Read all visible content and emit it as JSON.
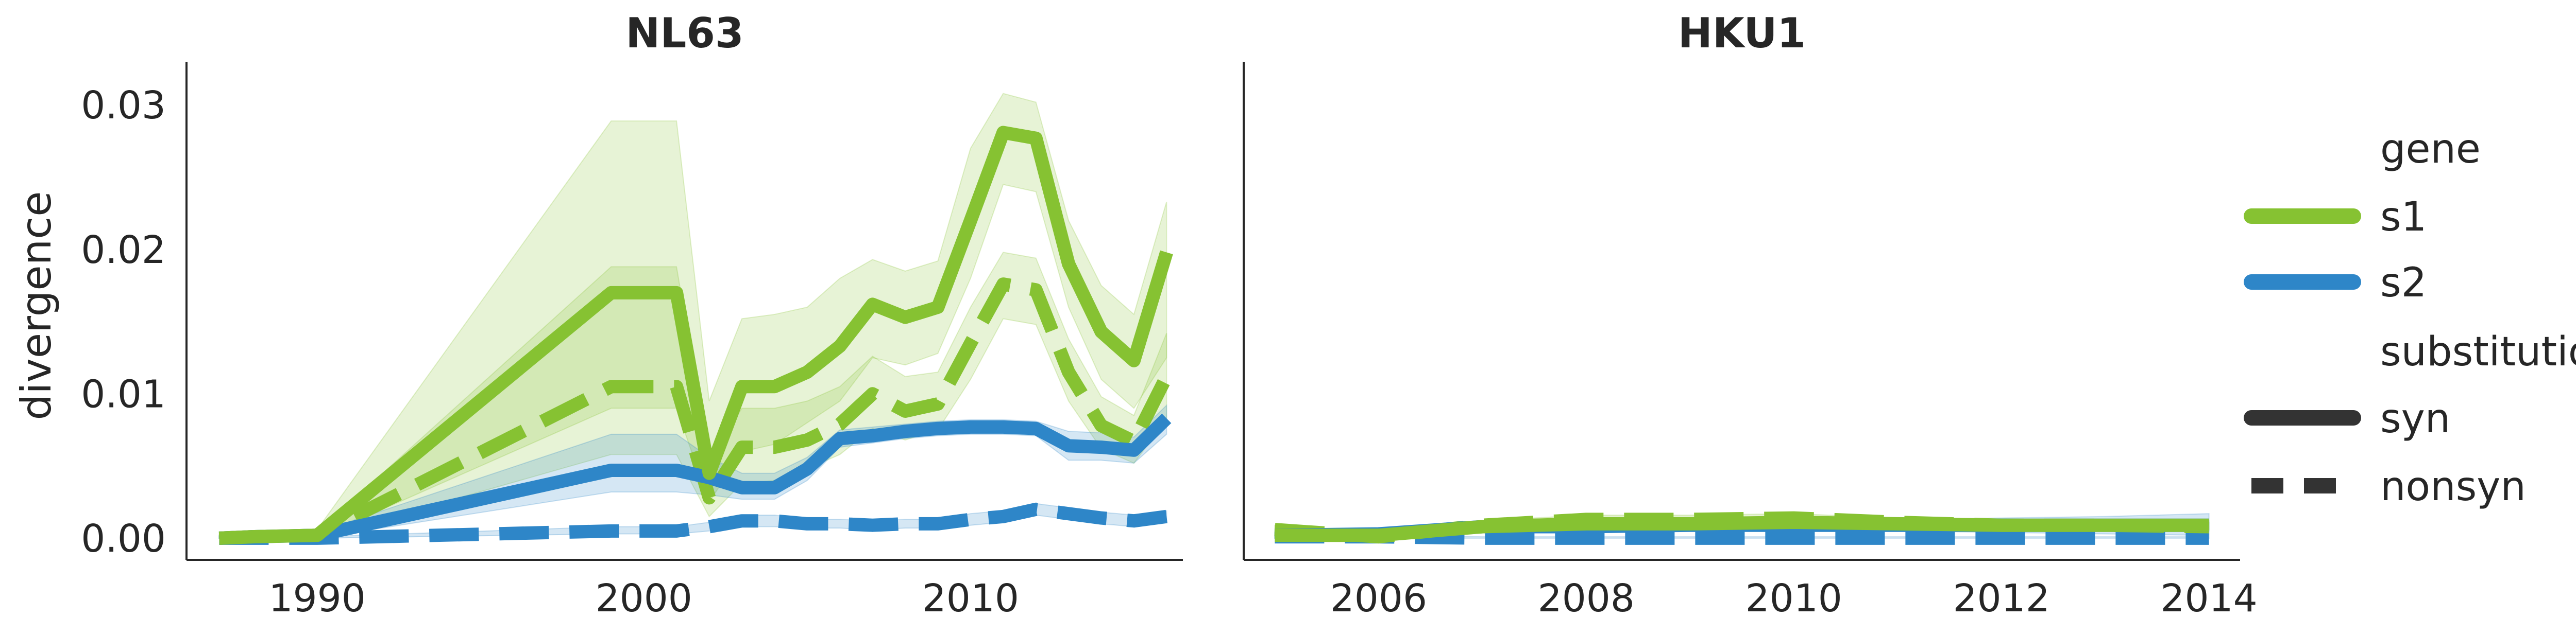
{
  "chart_data": [
    {
      "type": "line",
      "title": "NL63",
      "xlabel": "",
      "ylabel": "divergence",
      "xlim": [
        1986,
        2016.5
      ],
      "ylim": [
        -0.0015,
        0.033
      ],
      "xticks": [
        1990,
        2000,
        2010
      ],
      "yticks": [
        0.0,
        0.01,
        0.02,
        0.03
      ],
      "ytick_labels": [
        "0.00",
        "0.01",
        "0.02",
        "0.03"
      ],
      "grid": false,
      "series": [
        {
          "name": "s1 syn",
          "gene": "s1",
          "substitution": "syn",
          "x": [
            1987,
            1988,
            1990,
            1999,
            2001,
            2002,
            2003,
            2004,
            2005,
            2006,
            2007,
            2008,
            2009,
            2010,
            2011,
            2012,
            2013,
            2014,
            2015,
            2016
          ],
          "y": [
            0.0,
            0.0001,
            0.0002,
            0.017,
            0.017,
            0.0045,
            0.0105,
            0.0105,
            0.0115,
            0.0133,
            0.0162,
            0.0153,
            0.016,
            0.022,
            0.0281,
            0.0277,
            0.019,
            0.0143,
            0.0123,
            0.0198
          ],
          "ci_low": [
            0.0,
            0.0,
            0.0,
            0.009,
            0.009,
            0.0025,
            0.006,
            0.0065,
            0.008,
            0.0095,
            0.0125,
            0.012,
            0.0128,
            0.018,
            0.0245,
            0.024,
            0.016,
            0.011,
            0.009,
            0.0125
          ],
          "ci_high": [
            0.0003,
            0.0004,
            0.0006,
            0.0289,
            0.0289,
            0.0095,
            0.0152,
            0.0155,
            0.016,
            0.018,
            0.0193,
            0.0185,
            0.0192,
            0.027,
            0.0308,
            0.0302,
            0.022,
            0.0175,
            0.0155,
            0.0233
          ]
        },
        {
          "name": "s1 nonsyn",
          "gene": "s1",
          "substitution": "nonsyn",
          "x": [
            1987,
            1988,
            1990,
            1999,
            2001,
            2002,
            2003,
            2004,
            2005,
            2006,
            2007,
            2008,
            2009,
            2010,
            2011,
            2012,
            2013,
            2014,
            2015,
            2016
          ],
          "y": [
            0.0,
            0.0001,
            0.0002,
            0.0105,
            0.0105,
            0.0028,
            0.0063,
            0.0063,
            0.0068,
            0.0079,
            0.01,
            0.0088,
            0.0093,
            0.0135,
            0.0176,
            0.0172,
            0.0115,
            0.0078,
            0.0067,
            0.0112
          ],
          "ci_low": [
            0.0,
            0.0,
            0.0,
            0.0058,
            0.0058,
            0.0015,
            0.0038,
            0.004,
            0.0048,
            0.0058,
            0.0076,
            0.0068,
            0.0075,
            0.011,
            0.0152,
            0.0148,
            0.0095,
            0.0062,
            0.0052,
            0.0082
          ],
          "ci_high": [
            0.0002,
            0.0003,
            0.0004,
            0.0188,
            0.0188,
            0.0055,
            0.009,
            0.009,
            0.0095,
            0.0105,
            0.0126,
            0.0112,
            0.0115,
            0.016,
            0.0198,
            0.0194,
            0.0138,
            0.0098,
            0.0085,
            0.0142
          ]
        },
        {
          "name": "s2 syn",
          "gene": "s2",
          "substitution": "syn",
          "x": [
            1987,
            1988,
            1990,
            1999,
            2001,
            2002,
            2003,
            2004,
            2005,
            2006,
            2007,
            2008,
            2009,
            2010,
            2011,
            2012,
            2013,
            2014,
            2015,
            2016
          ],
          "y": [
            0.0,
            0.0001,
            0.0002,
            0.0047,
            0.0047,
            0.0042,
            0.0035,
            0.0035,
            0.0048,
            0.0069,
            0.0071,
            0.0074,
            0.0076,
            0.0077,
            0.0077,
            0.0076,
            0.0064,
            0.0063,
            0.0061,
            0.0083
          ],
          "ci_low": [
            0.0,
            0.0,
            0.0,
            0.0032,
            0.0032,
            0.003,
            0.0027,
            0.0027,
            0.004,
            0.0063,
            0.0066,
            0.0069,
            0.0071,
            0.0072,
            0.0072,
            0.0071,
            0.0054,
            0.0054,
            0.0052,
            0.0072
          ],
          "ci_high": [
            0.0002,
            0.0002,
            0.0004,
            0.0072,
            0.0072,
            0.0056,
            0.0045,
            0.0045,
            0.0056,
            0.0075,
            0.0077,
            0.0079,
            0.0081,
            0.0082,
            0.0082,
            0.0081,
            0.0074,
            0.0073,
            0.007,
            0.0092
          ]
        },
        {
          "name": "s2 nonsyn",
          "gene": "s2",
          "substitution": "nonsyn",
          "x": [
            1987,
            1988,
            1990,
            1999,
            2001,
            2002,
            2003,
            2004,
            2005,
            2006,
            2007,
            2008,
            2009,
            2010,
            2011,
            2012,
            2013,
            2014,
            2015,
            2016
          ],
          "y": [
            0.0,
            0.0,
            0.0,
            0.0005,
            0.0005,
            0.0008,
            0.0012,
            0.0012,
            0.001,
            0.001,
            0.0009,
            0.001,
            0.001,
            0.0013,
            0.0015,
            0.002,
            0.0017,
            0.0014,
            0.0012,
            0.0015
          ],
          "ci_low": [
            0.0,
            0.0,
            0.0,
            0.0003,
            0.0003,
            0.0005,
            0.0008,
            0.0008,
            0.0007,
            0.0007,
            0.0006,
            0.0007,
            0.0007,
            0.0009,
            0.0011,
            0.0016,
            0.0013,
            0.001,
            0.0008,
            0.0011
          ],
          "ci_high": [
            0.0001,
            0.0001,
            0.0001,
            0.0008,
            0.0008,
            0.0011,
            0.0016,
            0.0016,
            0.0013,
            0.0013,
            0.0012,
            0.0013,
            0.0013,
            0.0017,
            0.0019,
            0.0024,
            0.0021,
            0.0018,
            0.0016,
            0.0019
          ]
        }
      ]
    },
    {
      "type": "line",
      "title": "HKU1",
      "xlabel": "",
      "ylabel": "",
      "xlim": [
        2004.7,
        2014.3
      ],
      "ylim": [
        -0.0015,
        0.033
      ],
      "xticks": [
        2006,
        2008,
        2010,
        2012,
        2014
      ],
      "grid": false,
      "series": [
        {
          "name": "s1 syn",
          "gene": "s1",
          "substitution": "syn",
          "x": [
            2005,
            2006,
            2007,
            2008,
            2009,
            2010,
            2011,
            2012,
            2013,
            2014
          ],
          "y": [
            0.0002,
            0.0002,
            0.0008,
            0.001,
            0.001,
            0.0011,
            0.001,
            0.0009,
            0.0009,
            0.0009
          ],
          "ci_low": [
            0.0,
            0.0,
            0.0005,
            0.0007,
            0.0007,
            0.0008,
            0.0007,
            0.0006,
            0.0006,
            0.0006
          ],
          "ci_high": [
            0.0005,
            0.0005,
            0.0011,
            0.0013,
            0.0013,
            0.0014,
            0.0013,
            0.0012,
            0.0012,
            0.0012
          ]
        },
        {
          "name": "s1 nonsyn",
          "gene": "s1",
          "substitution": "nonsyn",
          "x": [
            2005,
            2006,
            2007,
            2008,
            2009,
            2010,
            2011,
            2012,
            2013,
            2014
          ],
          "y": [
            0.0006,
            0.0001,
            0.0009,
            0.0013,
            0.0013,
            0.0014,
            0.0011,
            0.0009,
            0.0009,
            0.0008
          ],
          "ci_low": [
            0.0003,
            0.0,
            0.0006,
            0.001,
            0.001,
            0.0011,
            0.0008,
            0.0006,
            0.0006,
            0.0005
          ],
          "ci_high": [
            0.0009,
            0.0004,
            0.0012,
            0.0016,
            0.0016,
            0.0017,
            0.0014,
            0.0012,
            0.0012,
            0.0011
          ]
        },
        {
          "name": "s2 syn",
          "gene": "s2",
          "substitution": "syn",
          "x": [
            2005,
            2006,
            2007,
            2008,
            2009,
            2010,
            2011,
            2012,
            2013,
            2014
          ],
          "y": [
            0.0002,
            0.0003,
            0.0008,
            0.0008,
            0.0009,
            0.0009,
            0.0009,
            0.0009,
            0.0009,
            0.0009
          ],
          "ci_low": [
            0.0,
            0.0001,
            0.0005,
            0.0005,
            0.0006,
            0.0006,
            0.0005,
            0.0004,
            0.0003,
            0.0002
          ],
          "ci_high": [
            0.0004,
            0.0005,
            0.0011,
            0.0011,
            0.0012,
            0.0013,
            0.0013,
            0.0014,
            0.0015,
            0.0017
          ]
        },
        {
          "name": "s2 nonsyn",
          "gene": "s2",
          "substitution": "nonsyn",
          "x": [
            2005,
            2006,
            2007,
            2008,
            2009,
            2010,
            2011,
            2012,
            2013,
            2014
          ],
          "y": [
            0.0001,
            0.0001,
            0.0,
            0.0,
            0.0,
            0.0,
            0.0,
            0.0,
            0.0,
            0.0
          ],
          "ci_low": [
            0.0,
            0.0,
            0.0,
            0.0,
            0.0,
            0.0,
            0.0,
            0.0,
            0.0,
            0.0
          ],
          "ci_high": [
            0.0002,
            0.0002,
            0.0001,
            0.0001,
            0.0001,
            0.0001,
            0.0001,
            0.0001,
            0.0001,
            0.0001
          ]
        }
      ]
    }
  ],
  "legend": {
    "placement": "right",
    "gene_title": "gene",
    "genes": [
      {
        "label": "s1",
        "key": "s1",
        "color": "#86c232"
      },
      {
        "label": "s2",
        "key": "s2",
        "color": "#2e86c8"
      }
    ],
    "substitution_title": "substitution",
    "substitutions": [
      {
        "label": "syn",
        "key": "syn",
        "dashed": false
      },
      {
        "label": "nonsyn",
        "key": "nonsyn",
        "dashed": true
      }
    ],
    "style_color": "#333333"
  },
  "colors": {
    "s1": "#86c232",
    "s2": "#2e86c8",
    "axis": "#262626"
  }
}
